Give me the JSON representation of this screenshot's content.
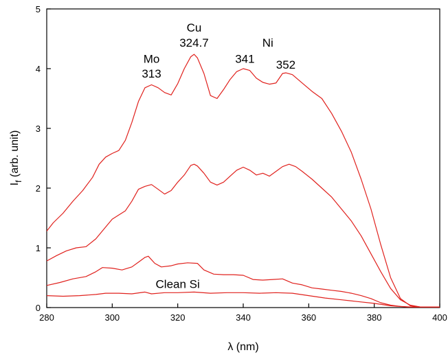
{
  "chart_data": {
    "type": "line",
    "title": "",
    "xlabel": "λ (nm)",
    "ylabel_main": "I",
    "ylabel_sub": "f",
    "ylabel_rest": " (arb. unit)",
    "xlim": [
      280,
      400
    ],
    "ylim": [
      0,
      5
    ],
    "xticks": [
      280,
      300,
      320,
      340,
      360,
      380,
      400
    ],
    "yticks": [
      0,
      1,
      2,
      3,
      4,
      5
    ],
    "grid": false,
    "line_color": "#e0201c",
    "annotations": [
      {
        "text": "Cu",
        "x": 325,
        "y": 4.62
      },
      {
        "text": "324.7",
        "x": 325,
        "y": 4.37
      },
      {
        "text": "Mo",
        "x": 312,
        "y": 4.1
      },
      {
        "text": "313",
        "x": 312,
        "y": 3.85
      },
      {
        "text": "341",
        "x": 340.5,
        "y": 4.1
      },
      {
        "text": "Ni",
        "x": 347.5,
        "y": 4.37
      },
      {
        "text": "352",
        "x": 353,
        "y": 4.0
      },
      {
        "text": "Clean Si",
        "x": 320,
        "y": 0.33
      }
    ],
    "series": [
      {
        "x": [
          280,
          282,
          285,
          288,
          291,
          294,
          296,
          298,
          300,
          302,
          304,
          306,
          308,
          310,
          312,
          314,
          316,
          318,
          320,
          322,
          324,
          325,
          326,
          328,
          330,
          332,
          334,
          336,
          338,
          340,
          342,
          344,
          346,
          348,
          350,
          352,
          353,
          355,
          358,
          361,
          364,
          367,
          370,
          373,
          376,
          379,
          382,
          385,
          388,
          391,
          394,
          397,
          400
        ],
        "values": [
          1.28,
          1.42,
          1.58,
          1.78,
          1.96,
          2.18,
          2.4,
          2.52,
          2.58,
          2.63,
          2.8,
          3.1,
          3.45,
          3.68,
          3.73,
          3.68,
          3.6,
          3.56,
          3.75,
          4.0,
          4.2,
          4.24,
          4.18,
          3.92,
          3.55,
          3.5,
          3.65,
          3.82,
          3.95,
          4.0,
          3.97,
          3.84,
          3.77,
          3.74,
          3.76,
          3.92,
          3.93,
          3.9,
          3.76,
          3.62,
          3.5,
          3.25,
          2.95,
          2.6,
          2.15,
          1.65,
          1.05,
          0.5,
          0.15,
          0.03,
          0.01,
          0.01,
          0.01
        ]
      },
      {
        "x": [
          280,
          283,
          286,
          289,
          292,
          295,
          298,
          300,
          302,
          304,
          306,
          308,
          310,
          312,
          314,
          316,
          318,
          320,
          322,
          324,
          325,
          326,
          328,
          330,
          332,
          334,
          336,
          338,
          340,
          342,
          344,
          346,
          348,
          350,
          352,
          354,
          356,
          358,
          361,
          364,
          367,
          370,
          373,
          376,
          379,
          382,
          385,
          388,
          391,
          394,
          397,
          400
        ],
        "values": [
          0.78,
          0.87,
          0.95,
          1.0,
          1.02,
          1.15,
          1.35,
          1.48,
          1.55,
          1.62,
          1.78,
          1.98,
          2.03,
          2.06,
          1.98,
          1.9,
          1.96,
          2.1,
          2.22,
          2.38,
          2.4,
          2.37,
          2.25,
          2.1,
          2.05,
          2.1,
          2.2,
          2.3,
          2.35,
          2.3,
          2.22,
          2.25,
          2.2,
          2.28,
          2.36,
          2.4,
          2.36,
          2.28,
          2.15,
          2.0,
          1.85,
          1.65,
          1.45,
          1.2,
          0.9,
          0.6,
          0.32,
          0.13,
          0.04,
          0.01,
          0.01,
          0.01
        ]
      },
      {
        "x": [
          280,
          284,
          288,
          292,
          295,
          297,
          300,
          303,
          306,
          308,
          310,
          311,
          313,
          315,
          318,
          320,
          323,
          326,
          328,
          331,
          334,
          337,
          340,
          343,
          346,
          349,
          352,
          355,
          358,
          361,
          364,
          367,
          370,
          373,
          376,
          379,
          382,
          385,
          388,
          391,
          394,
          397,
          400
        ],
        "values": [
          0.37,
          0.42,
          0.48,
          0.52,
          0.6,
          0.67,
          0.66,
          0.63,
          0.68,
          0.76,
          0.84,
          0.86,
          0.74,
          0.68,
          0.7,
          0.73,
          0.75,
          0.74,
          0.63,
          0.56,
          0.55,
          0.55,
          0.54,
          0.47,
          0.46,
          0.47,
          0.48,
          0.41,
          0.38,
          0.33,
          0.31,
          0.29,
          0.27,
          0.24,
          0.2,
          0.15,
          0.08,
          0.04,
          0.02,
          0.01,
          0.01,
          0.01,
          0.01
        ]
      },
      {
        "x": [
          280,
          285,
          290,
          295,
          298,
          302,
          306,
          310,
          312,
          316,
          320,
          325,
          330,
          335,
          340,
          345,
          350,
          355,
          360,
          365,
          370,
          375,
          380,
          385,
          390,
          395,
          400
        ],
        "values": [
          0.2,
          0.19,
          0.2,
          0.22,
          0.24,
          0.24,
          0.23,
          0.26,
          0.23,
          0.25,
          0.25,
          0.26,
          0.24,
          0.25,
          0.25,
          0.24,
          0.25,
          0.24,
          0.2,
          0.16,
          0.13,
          0.1,
          0.07,
          0.03,
          0.01,
          0.01,
          0.01
        ]
      }
    ]
  }
}
